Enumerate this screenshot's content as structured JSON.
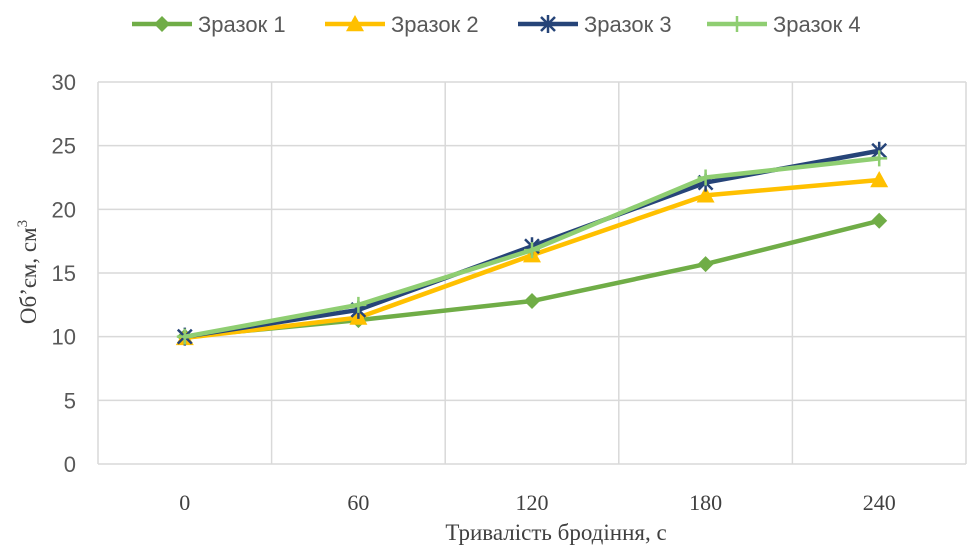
{
  "chart_data": {
    "type": "line",
    "title": "",
    "xlabel": "Тривалість бродіння, с",
    "ylabel": "Об’єм, см",
    "ylabel_superscript": "3",
    "categories": [
      "0",
      "60",
      "120",
      "180",
      "240"
    ],
    "ylim": [
      0,
      30
    ],
    "yticks": [
      0,
      5,
      10,
      15,
      20,
      25,
      30
    ],
    "grid": true,
    "legend_position": "top",
    "series": [
      {
        "name": "Зразок 1",
        "values": [
          10.0,
          11.3,
          12.8,
          15.7,
          19.1
        ],
        "color": "#70ad47",
        "marker": "diamond"
      },
      {
        "name": "Зразок 2",
        "values": [
          9.9,
          11.5,
          16.4,
          21.1,
          22.3
        ],
        "color": "#ffc000",
        "marker": "triangle"
      },
      {
        "name": "Зразок 3",
        "values": [
          10.0,
          12.1,
          17.1,
          22.1,
          24.6
        ],
        "color": "#264478",
        "marker": "star"
      },
      {
        "name": "Зразок 4",
        "values": [
          10.0,
          12.5,
          16.8,
          22.5,
          24.0
        ],
        "color": "#8fce72",
        "marker": "plus"
      }
    ]
  }
}
